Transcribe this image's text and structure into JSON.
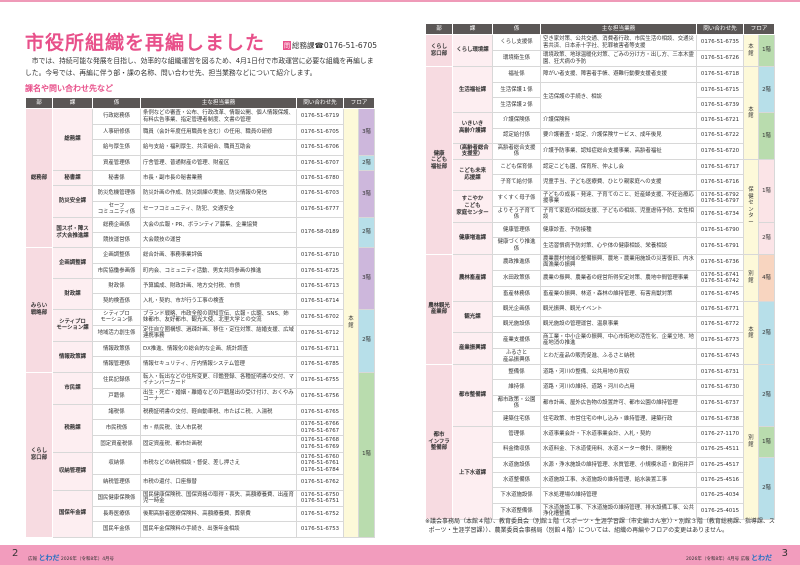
{
  "header": {
    "title": "市役所組織を再編しました",
    "contact_dept": "総務課",
    "contact_phone": "0176-51-6705",
    "lead": "市では、持続可能な発展を目指し、効率的な組織運営を図るため、4月1日付で市政運営に必要な組織を再編しました。今号では、再編に伴う部・課の名称、問い合わせ先、担当業務などについて紹介します。",
    "subheading": "課名や問い合わせ先など"
  },
  "columns": [
    "部",
    "課",
    "係",
    "主な担当業務",
    "問い合わせ先",
    "フロア"
  ],
  "floor_colors": {
    "3階": "#cdb7dc",
    "2階": "#b7dfe9",
    "1階": "#b9dcae",
    "4階": "#f8d5c0",
    "pink": "#fbe4e7"
  },
  "left_rows": [
    {
      "dept": [
        "総務部",
        9
      ],
      "sec": [
        "総務課",
        4
      ],
      "team": "行政総務係",
      "work": "条例などの審査・公布、行政改革、情報公開、個人情報保護、有料広告事業、指定管理者制度、文書の管理",
      "phone": "0176-51-6719",
      "bldg": [
        "本館",
        27
      ],
      "floor": [
        "3階",
        3
      ]
    },
    {
      "team": "人事研修係",
      "work": "職員（会計年度任用職員を含む）の任用、職員の研修",
      "phone": "0176-51-6705"
    },
    {
      "team": "給与厚生係",
      "work": "給与支給・福利厚生、共済組合、職員互助会",
      "phone": "0176-51-6706"
    },
    {
      "team": "資産管理係",
      "work": "庁舎管理、普通財産の管理、財産区",
      "phone": "0176-51-6707",
      "floor": [
        "2階",
        1
      ]
    },
    {
      "sec": [
        "秘書課",
        1
      ],
      "team": "秘書係",
      "work": "市長・副市長の秘書業務",
      "phone": "0176-51-6780",
      "floor": [
        "3階",
        3
      ]
    },
    {
      "sec": [
        "防災安全課",
        2
      ],
      "team": "防災危機管理係",
      "work": "防災計画の作成、防災訓練の実施、防災情報の発信",
      "phone": "0176-51-6703"
    },
    {
      "team": "セーフ\nコミュニティ係",
      "work": "セーフコミュニティ、防犯、交通安全",
      "phone": "0176-51-6777"
    },
    {
      "sec": [
        "国スポ・障スポ大会推進課",
        2
      ],
      "team": "総務企画係",
      "work": "大会の広報・PR、ボランティア募集、企業協賛",
      "phone": [
        "0176-58-0189",
        2
      ],
      "floor": [
        "2階",
        2
      ]
    },
    {
      "team": "競技運営係",
      "work": "大会競技の運営"
    },
    {
      "dept": [
        "みらい\n戦略部",
        8
      ],
      "sec": [
        "企画調整課",
        2
      ],
      "team": "企画調整係",
      "work": "総合計画、事務事業評価",
      "phone": "0176-51-6710",
      "floor": [
        "3階",
        4
      ]
    },
    {
      "team": "市民協働参画係",
      "work": "町内会、コミュニティ活動、男女共同参画の推進",
      "phone": "0176-51-6725"
    },
    {
      "sec": [
        "財政課",
        2
      ],
      "team": "財政係",
      "work": "予算編成、財政計画、地方交付税、市債",
      "phone": "0176-51-6713"
    },
    {
      "team": "契約検査係",
      "work": "入札・契約、市が行う工事の検査",
      "phone": "0176-51-6714"
    },
    {
      "sec": [
        "シティプロ\nモーション課",
        2
      ],
      "team": "シティプロ\nモーション係",
      "work": "ブランド戦略、市政全般の周知宣伝、広報・広聴、SNS、姉妹都市、友好都市、観光大使、北里大学との交流",
      "phone": "0176-51-6702",
      "floor": [
        "2階",
        4
      ]
    },
    {
      "team": "地域活力創生係",
      "work": "定住自立圏構想、過疎計画、移住・定住対策、結婚支援、広域連携事務",
      "phone": "0176-51-6712"
    },
    {
      "sec": [
        "情報政策課",
        2
      ],
      "team": "情報政策係",
      "work": "DX推進、情報化の総合的な企画、統計調査",
      "phone": "0176-51-6711"
    },
    {
      "team": "情報管理係",
      "work": "情報セキュリティ、庁内情報システム管理",
      "phone": "0176-51-6785"
    },
    {
      "dept": [
        "くらし\n窓口部",
        10
      ],
      "sec": [
        "市民課",
        2
      ],
      "team": "住民記録係",
      "work": "転入・転出などの住所変更、印鑑登録、各種証明書の交付、マイナンバーカード",
      "phone": "0176-51-6755",
      "floor": [
        "1階",
        10
      ]
    },
    {
      "team": "戸籍係",
      "work": "出生・死亡・婚姻・離婚などの戸籍届出の受け付け、おくやみコーナー",
      "phone": "0176-51-6756"
    },
    {
      "sec": [
        "税務課",
        3
      ],
      "team": "諸税係",
      "work": "税務証明書の交付、軽自動車税、市たばこ税、入湯税",
      "phone": "0176-51-6765"
    },
    {
      "team": "市民税係",
      "work": "市・県民税、法人市民税",
      "phone": "0176-51-6766\n0176-51-6767"
    },
    {
      "team": "固定資産税係",
      "work": "固定資産税、都市計画税",
      "phone": "0176-51-6768\n0176-51-6769"
    },
    {
      "sec": [
        "収納管理課",
        2
      ],
      "team": "収納係",
      "work": "市税などの納税相談・督促、差し押さえ",
      "phone": "0176-51-6760\n0176-51-6761\n0176-51-6784"
    },
    {
      "team": "納税管理係",
      "work": "市税の還付、口座振替",
      "phone": "0176-51-6762"
    },
    {
      "sec": [
        "国保年金課",
        3
      ],
      "team": "国民健康保険係",
      "work": "国民健康保険税、国保資格の取得・喪失、高額療養費、出産育児一時金",
      "phone": "0176-51-6750\n0176-51-6751"
    },
    {
      "team": "長寿医療係",
      "work": "後期高齢者医療保険料、高額療養費、葬祭費",
      "phone": "0176-51-6752"
    },
    {
      "team": "国民年金係",
      "work": "国民年金保険料の手続き、出張年金相談",
      "phone": "0176-51-6753"
    }
  ],
  "right_rows": [
    {
      "dept": [
        "くらし\n窓口部",
        2
      ],
      "sec": [
        "くらし環境課",
        2
      ],
      "team": "くらし支援係",
      "work": "空き家対策、公共交通、消費者行政、市民生活の相談、交通災害共済、日本赤十字社、犯罪被害者等支援",
      "phone": "0176-51-6735",
      "bldg": [
        "本館",
        2
      ],
      "floor": [
        "1階",
        2
      ]
    },
    {
      "team": "環境衛生係",
      "work": "環境政策、地球温暖化対策、ごみの分け方・出し方、三本木霊園、狂犬病の予防",
      "phone": "0176-51-6726"
    },
    {
      "dept": [
        "健康\nこども\n福祉部",
        12
      ],
      "sec": [
        "生活福祉課",
        3
      ],
      "team": "福祉係",
      "work": "障がい者支援、障害者手帳、避難行動要支援者支援",
      "phone": "0176-51-6718",
      "bldg": [
        "本館",
        6
      ],
      "floor": [
        "2階",
        3
      ]
    },
    {
      "team": "生活保護１係",
      "work": [
        "生活保護の手続き、相談",
        2
      ],
      "phone": "0176-51-6715"
    },
    {
      "team": "生活保護２係",
      "phone": "0176-51-6739"
    },
    {
      "sec": [
        "いきいき\n高齢介護課",
        2
      ],
      "team": "介護保険係",
      "work": "介護保険料",
      "phone": "0176-51-6721",
      "floor": [
        "1階",
        3
      ]
    },
    {
      "team": "認定給付係",
      "work": "要介護審査・認定、介護保険サービス、成年後見",
      "phone": "0176-51-6722"
    },
    {
      "sec": [
        "（高齢者総合\n支援室）",
        1
      ],
      "team": "高齢者総合支援係",
      "work": "介護予防事業、認知症総合支援事業、高齢者福祉",
      "phone": "0176-51-6720"
    },
    {
      "sec": [
        "こども未来\n応援課",
        2
      ],
      "team": "こども保育係",
      "work": "認定こども園、保育所、仲よし会",
      "phone": "0176-51-6717",
      "bldg": [
        "保健\nセン\nター",
        6
      ],
      "floor": [
        "1階",
        4,
        "pink"
      ]
    },
    {
      "team": "子育て給付係",
      "work": "児童手当、子ども医療費、ひとり親家庭への支援",
      "phone": "0176-51-6716"
    },
    {
      "sec": [
        "すこやか\nこども\n家庭センター",
        2
      ],
      "team": "すくすく母子係",
      "work": "子どもの成長・発達、子育てのこと、妊産婦支援、不妊治療応援事業",
      "phone": "0176-51-6792\n0176-51-6797"
    },
    {
      "team": "よりそう子育て係",
      "work": "子育て家庭の相談支援、子どもの相談、児童虐待予防、女性相談",
      "phone": "0176-51-6734"
    },
    {
      "sec": [
        "健康増進課",
        2
      ],
      "team": "健康管理係",
      "work": "健康診査、予防接種",
      "phone": "0176-51-6790",
      "floor": [
        "2階",
        2,
        "pink"
      ]
    },
    {
      "team": "健康づくり推進係",
      "work": "生活習慣病予防対策、心や体の健康相談、栄養相談",
      "phone": "0176-51-6791"
    },
    {
      "dept": [
        "農林観光\n産業部",
        7
      ],
      "sec": [
        "農林畜産課",
        3
      ],
      "team": "農政推進係",
      "work": "農業農村地域の整備振興、農地・農業用施設の災害復旧、内水面漁業の振興",
      "phone": "0176-51-6736",
      "bldg": [
        "別館",
        3
      ],
      "floor": [
        "4階",
        3
      ]
    },
    {
      "team": "水田政策係",
      "work": "農業の振興、農業者の経営所得安定対策、農地中間管理事業",
      "phone": "0176-51-6741\n0176-51-6742"
    },
    {
      "team": "畜産林務係",
      "work": "畜産業の振興、林道・森林の維持管理、有害鳥獣対策",
      "phone": "0176-51-6745"
    },
    {
      "sec": [
        "観光課",
        2
      ],
      "team": "観光企画係",
      "work": "観光振興、観光イベント",
      "phone": "0176-51-6771",
      "bldg": [
        "本館",
        4
      ],
      "floor": [
        "2階",
        4
      ]
    },
    {
      "team": "観光施設係",
      "work": "観光施設の管理運営、温泉事業",
      "phone": "0176-51-6772"
    },
    {
      "sec": [
        "産業振興課",
        2
      ],
      "team": "産業支援係",
      "work": "商工業・中小企業の振興、中心市街地の活性化、企業立地、地産地消の推進",
      "phone": "0176-51-6773"
    },
    {
      "team": "ふるさと\n産品振興係",
      "work": "とわだ産品の販売促進、ふるさと納税",
      "phone": "0176-51-6743"
    },
    {
      "dept": [
        "都市\nインフラ\n整備部",
        10
      ],
      "sec": [
        "都市整備課",
        4
      ],
      "team": "整備係",
      "work": "道路・河川の整備、公共用地の買収",
      "phone": "0176-51-6731",
      "bldg": [
        "別館",
        10
      ],
      "floor": [
        "2階",
        4
      ]
    },
    {
      "team": "維持係",
      "work": "道路・河川の維持、道路・河川の占用",
      "phone": "0176-51-6730"
    },
    {
      "team": "都市政策・公園係",
      "work": "都市計画、屋外広告物の設置許可、都市公園の維持管理",
      "phone": "0176-51-6737"
    },
    {
      "team": "建築住宅係",
      "work": "住宅政策、市営住宅の申し込み・維持管理、建築行政",
      "phone": "0176-51-6738"
    },
    {
      "sec": [
        "上下水道課",
        6
      ],
      "team": "管理係",
      "work": "水道事業会計・下水道事業会計、入札・契約",
      "phone": "0176-27-1170",
      "floor": [
        "1階",
        2
      ]
    },
    {
      "team": "料金徴収係",
      "work": "水道料金、下水道使用料、水道メーター検針、閉開栓",
      "phone": "0176-25-4511"
    },
    {
      "team": "水道施設係",
      "work": "水源・浄水施設の維持管理、水質管理、小規模水道・飲用井戸",
      "phone": "0176-25-4517",
      "floor": [
        "2階",
        4
      ]
    },
    {
      "team": "水道整備係",
      "work": "水道施設工事、水道施設の維持管理、給水装置工事",
      "phone": "0176-25-4516"
    },
    {
      "team": "下水道施設係",
      "work": "下水処理場の維持管理",
      "phone": "0176-25-4034"
    },
    {
      "team": "下水道整備係",
      "work": "下水道施設工事、下水道施設の維持管理、排水設備工事、公共浄化槽整備",
      "phone": "0176-25-4015"
    }
  ],
  "footnote": "※議会事務局（本館４階）、教育委員会（別館１階（スポーツ・生涯学習課（市史編さん室））・別館３階（教育総務課、指導課、スポーツ・生涯学習課））、農業委員会事務局（別館４階）については、組織の再編やフロアの変更はありません。",
  "footer": {
    "left_page": "2",
    "right_page": "3",
    "publication": "広報",
    "logo": "とわだ",
    "issue": "2026年（令和8年）4月号"
  }
}
